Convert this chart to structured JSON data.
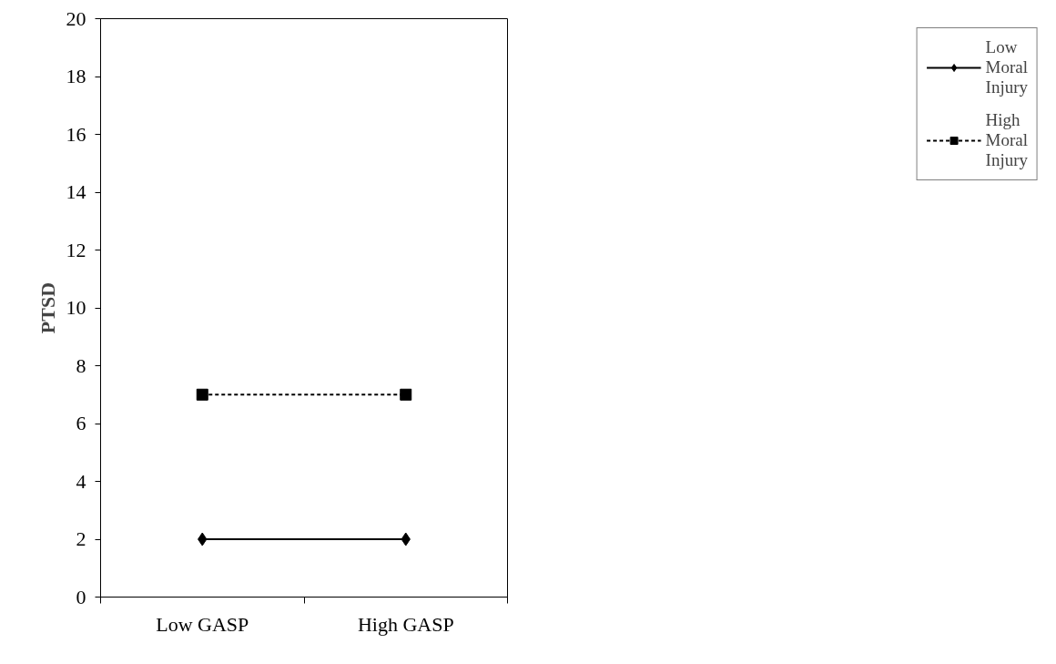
{
  "chart_data": {
    "type": "line",
    "ylabel": "PTSD",
    "categories": [
      "Low GASP",
      "High GASP"
    ],
    "series": [
      {
        "name": "Low Moral Injury",
        "color": "#000000",
        "marker": "diamond",
        "line_style": "solid",
        "values": [
          2,
          2
        ]
      },
      {
        "name": "High Moral Injury",
        "color": "#000000",
        "marker": "square",
        "line_style": "dashed",
        "values": [
          7,
          7
        ]
      }
    ],
    "ylim": [
      0,
      20
    ],
    "yticks": [
      0,
      2,
      4,
      6,
      8,
      10,
      12,
      14,
      16,
      18,
      20
    ],
    "grid": false,
    "legend": "right"
  }
}
